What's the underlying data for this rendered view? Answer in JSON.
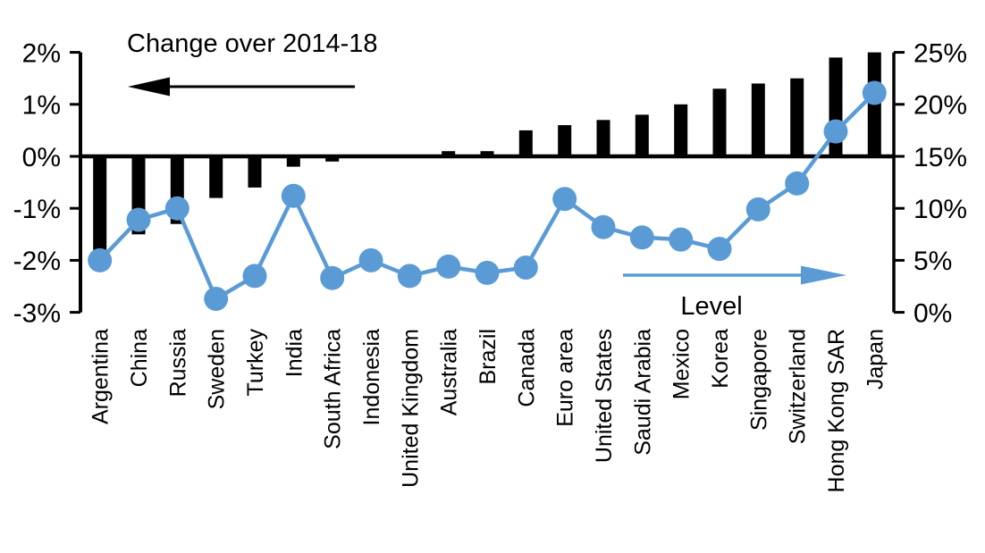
{
  "chart_data": {
    "type": "bar",
    "subtype": "combo-bar-line-dual-axis",
    "categories": [
      "Argentina",
      "China",
      "Russia",
      "Sweden",
      "Turkey",
      "India",
      "South Africa",
      "Indonesia",
      "United Kingdom",
      "Australia",
      "Brazil",
      "Canada",
      "Euro area",
      "United States",
      "Saudi Arabia",
      "Mexico",
      "Korea",
      "Singapore",
      "Switzerland",
      "Hong Kong SAR",
      "Japan"
    ],
    "series": [
      {
        "name": "Change over 2014-18",
        "type": "bar",
        "axis": "left",
        "color": "#000000",
        "unit": "%",
        "values": [
          -1.8,
          -1.5,
          -1.3,
          -0.8,
          -0.6,
          -0.2,
          -0.1,
          0,
          0,
          0.1,
          0.1,
          0.5,
          0.6,
          0.7,
          0.8,
          1.0,
          1.3,
          1.4,
          1.5,
          1.9,
          2.0
        ]
      },
      {
        "name": "Level",
        "type": "line",
        "axis": "right",
        "color": "#5B9BD5",
        "unit": "%",
        "marker": "circle",
        "values": [
          5.0,
          8.9,
          10.0,
          1.3,
          3.5,
          11.2,
          3.3,
          5.0,
          3.5,
          4.4,
          3.8,
          4.3,
          10.9,
          8.2,
          7.2,
          7.0,
          6.1,
          9.9,
          12.4,
          17.4,
          21.1
        ]
      }
    ],
    "left_axis": {
      "min": -3,
      "max": 2,
      "tick_step": 1,
      "tick_labels": [
        "2%",
        "1%",
        "0%",
        "-1%",
        "-2%",
        "-3%"
      ]
    },
    "right_axis": {
      "min": 0,
      "max": 25,
      "tick_step": 5,
      "tick_labels": [
        "25%",
        "20%",
        "15%",
        "10%",
        "5%",
        "0%"
      ]
    },
    "grid": "off",
    "legend_position": "in-plot annotations with arrows",
    "annotations": [
      {
        "text": "Change over 2014-18",
        "arrow_direction": "left",
        "arrow_color": "#000000",
        "text_color": "#000000"
      },
      {
        "text": "Level",
        "arrow_direction": "right",
        "arrow_color": "#5B9BD5",
        "text_color": "#000000"
      }
    ]
  }
}
